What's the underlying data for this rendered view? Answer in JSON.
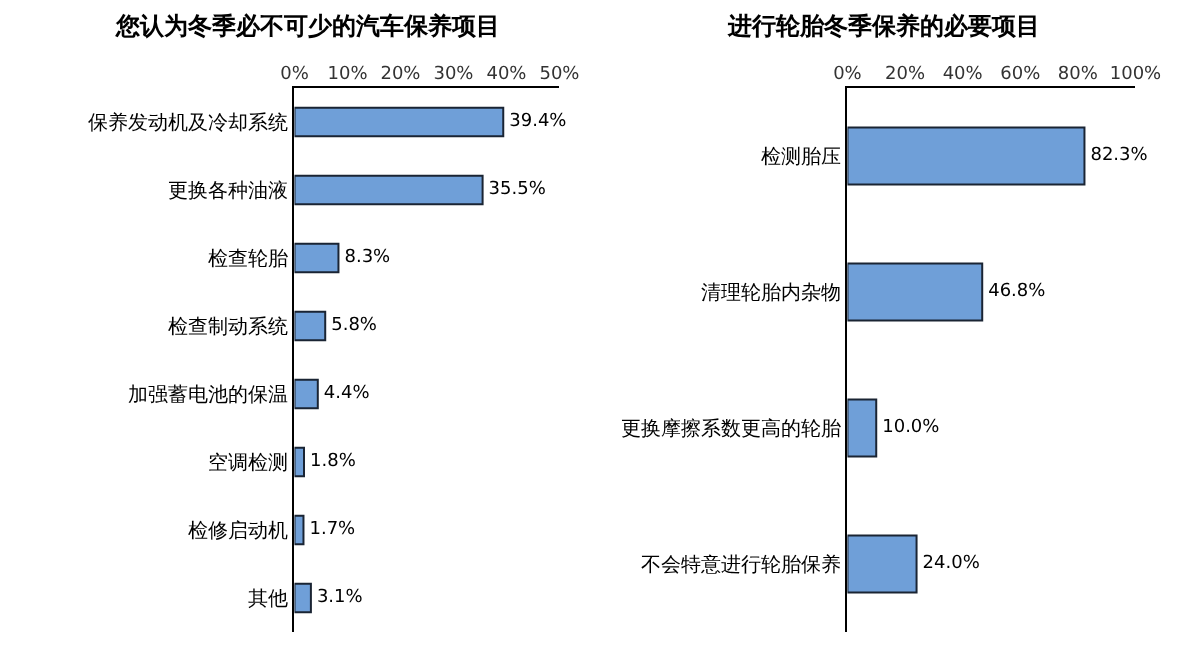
{
  "chart_data": [
    {
      "type": "bar",
      "orientation": "horizontal",
      "title": "您认为冬季必不可少的汽车保养项目",
      "categories": [
        "保养发动机及冷却系统",
        "更换各种油液",
        "检查轮胎",
        "检查制动系统",
        "加强蓄电池的保温",
        "空调检测",
        "检修启动机",
        "其他"
      ],
      "values": [
        39.4,
        35.5,
        8.3,
        5.8,
        4.4,
        1.8,
        1.7,
        3.1
      ],
      "color": "#6f9fd8",
      "value_labels": [
        "39.4%",
        "35.5%",
        "8.3%",
        "5.8%",
        "4.4%",
        "1.8%",
        "1.7%",
        "3.1%"
      ],
      "xlim": [
        0,
        50
      ],
      "xticks": [
        {
          "value": 0,
          "label": "0%"
        },
        {
          "value": 10,
          "label": "10%"
        },
        {
          "value": 20,
          "label": "20%"
        },
        {
          "value": 30,
          "label": "30%"
        },
        {
          "value": 40,
          "label": "40%"
        },
        {
          "value": 50,
          "label": "50%"
        }
      ]
    },
    {
      "type": "bar",
      "orientation": "horizontal",
      "title": "进行轮胎冬季保养的必要项目",
      "categories": [
        "检测胎压",
        "清理轮胎内杂物",
        "更换摩擦系数更高的轮胎",
        "不会特意进行轮胎保养"
      ],
      "values": [
        82.3,
        46.8,
        10.0,
        24.0
      ],
      "color": "#6f9fd8",
      "value_labels": [
        "82.3%",
        "46.8%",
        "10.0%",
        "24.0%"
      ],
      "xlim": [
        0,
        100
      ],
      "xticks": [
        {
          "value": 0,
          "label": "0%"
        },
        {
          "value": 20,
          "label": "20%"
        },
        {
          "value": 40,
          "label": "40%"
        },
        {
          "value": 60,
          "label": "60%"
        },
        {
          "value": 80,
          "label": "80%"
        },
        {
          "value": 100,
          "label": "100%"
        }
      ]
    }
  ]
}
